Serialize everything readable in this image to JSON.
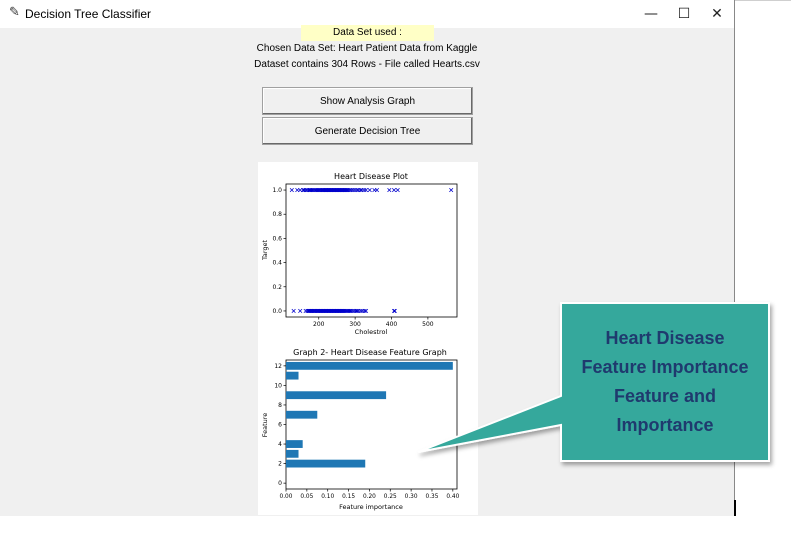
{
  "window": {
    "title": "Decision Tree Classifier",
    "minimize_glyph": "—",
    "maximize_glyph": "☐",
    "close_glyph": "✕",
    "icon": "feather-icon"
  },
  "dataset": {
    "label": "Data Set used :",
    "chosen": "Chosen Data Set: Heart Patient Data from Kaggle",
    "rows": "Dataset contains 304 Rows - File called Hearts.csv"
  },
  "buttons": {
    "show_graph": "Show Analysis Graph",
    "generate_tree": "Generate Decision Tree"
  },
  "callout": {
    "lines": [
      "Heart Disease",
      "Feature Importance",
      "Feature and",
      "Importance"
    ],
    "fill_color": "#35a89c",
    "text_color": "#1f3a6e"
  },
  "chart_data": [
    {
      "type": "scatter",
      "title": "Heart Disease Plot",
      "xlabel": "Cholestrol",
      "ylabel": "Target",
      "xlim": [
        110,
        580
      ],
      "ylim": [
        -0.05,
        1.05
      ],
      "xticks": [
        200,
        300,
        400,
        500
      ],
      "yticks": [
        0.0,
        0.2,
        0.4,
        0.6,
        0.8,
        1.0
      ],
      "ytick_labels": [
        "0.0",
        "0.2",
        "0.4",
        "0.6",
        "0.8",
        "1.0"
      ],
      "marker": "x",
      "color": "#0000cc",
      "series": [
        {
          "x": [
            126,
            141,
            149,
            157,
            160,
            164,
            168,
            172,
            175,
            177,
            180,
            183,
            186,
            190,
            192,
            195,
            198,
            201,
            204,
            207,
            209,
            211,
            213,
            215,
            217,
            219,
            221,
            223,
            225,
            227,
            229,
            231,
            233,
            235,
            237,
            239,
            241,
            243,
            245,
            247,
            249,
            251,
            253,
            255,
            257,
            259,
            261,
            263,
            265,
            267,
            269,
            271,
            273,
            275,
            277,
            279,
            282,
            286,
            290,
            295,
            300,
            305,
            309,
            315,
            318,
            325,
            330,
            340,
            353,
            360,
            394,
            407,
            417,
            564
          ],
          "y": [
            1,
            1,
            1,
            1,
            1,
            1,
            1,
            1,
            1,
            1,
            1,
            1,
            1,
            1,
            1,
            1,
            1,
            1,
            1,
            1,
            1,
            1,
            1,
            1,
            1,
            1,
            1,
            1,
            1,
            1,
            1,
            1,
            1,
            1,
            1,
            1,
            1,
            1,
            1,
            1,
            1,
            1,
            1,
            1,
            1,
            1,
            1,
            1,
            1,
            1,
            1,
            1,
            1,
            1,
            1,
            1,
            1,
            1,
            1,
            1,
            1,
            1,
            1,
            1,
            1,
            1,
            1,
            1,
            1,
            1,
            1,
            1,
            1,
            1
          ]
        },
        {
          "x": [
            131,
            149,
            164,
            169,
            172,
            174,
            176,
            178,
            180,
            182,
            184,
            186,
            188,
            190,
            192,
            195,
            197,
            199,
            201,
            203,
            205,
            207,
            209,
            211,
            213,
            215,
            217,
            219,
            221,
            223,
            225,
            227,
            229,
            231,
            233,
            235,
            237,
            239,
            241,
            243,
            245,
            247,
            249,
            251,
            253,
            255,
            257,
            259,
            261,
            263,
            265,
            267,
            269,
            271,
            274,
            277,
            280,
            283,
            286,
            289,
            293,
            298,
            302,
            305,
            309,
            315,
            320,
            326,
            330,
            407,
            409
          ],
          "y": [
            0,
            0,
            0,
            0,
            0,
            0,
            0,
            0,
            0,
            0,
            0,
            0,
            0,
            0,
            0,
            0,
            0,
            0,
            0,
            0,
            0,
            0,
            0,
            0,
            0,
            0,
            0,
            0,
            0,
            0,
            0,
            0,
            0,
            0,
            0,
            0,
            0,
            0,
            0,
            0,
            0,
            0,
            0,
            0,
            0,
            0,
            0,
            0,
            0,
            0,
            0,
            0,
            0,
            0,
            0,
            0,
            0,
            0,
            0,
            0,
            0,
            0,
            0,
            0,
            0,
            0,
            0,
            0,
            0,
            0,
            0
          ]
        }
      ]
    },
    {
      "type": "bar",
      "orientation": "horizontal",
      "title": "Graph 2- Heart Disease Feature Graph",
      "xlabel": "Feature importance",
      "ylabel": "Feature",
      "xlim": [
        0,
        0.41
      ],
      "ylim": [
        -0.6,
        12.6
      ],
      "xticks": [
        0.0,
        0.05,
        0.1,
        0.15,
        0.2,
        0.25,
        0.3,
        0.35,
        0.4
      ],
      "xtick_labels": [
        "0.00",
        "0.05",
        "0.10",
        "0.15",
        "0.20",
        "0.25",
        "0.30",
        "0.35",
        "0.40"
      ],
      "yticks": [
        0,
        2,
        4,
        6,
        8,
        10,
        12
      ],
      "color": "#1f77b4",
      "categories": [
        0,
        1,
        2,
        3,
        4,
        5,
        6,
        7,
        8,
        9,
        10,
        11,
        12
      ],
      "values": [
        0.0,
        0.0,
        0.19,
        0.03,
        0.04,
        0.0,
        0.0,
        0.075,
        0.0,
        0.24,
        0.0,
        0.03,
        0.4
      ]
    }
  ]
}
